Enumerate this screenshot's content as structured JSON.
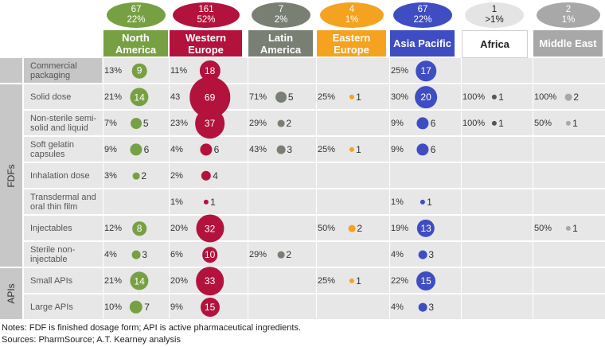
{
  "chart_data": {
    "type": "bubble-table",
    "columns": [
      {
        "name": "North America",
        "total": "67",
        "share": "22%",
        "color": "#77a043",
        "oval": "#77a043"
      },
      {
        "name": "Western Europe",
        "total": "161",
        "share": "52%",
        "color": "#b3123d",
        "oval": "#b3123d"
      },
      {
        "name": "Latin America",
        "total": "7",
        "share": "2%",
        "color": "#7a7f74",
        "oval": "#7a7f74"
      },
      {
        "name": "Eastern Europe",
        "total": "4",
        "share": "1%",
        "color": "#f4a21f",
        "oval": "#f4a21f"
      },
      {
        "name": "Asia Pacific",
        "total": "67",
        "share": "22%",
        "color": "#3f4dc2",
        "oval": "#3f4dc2"
      },
      {
        "name": "Africa",
        "total": "1",
        "share": ">1%",
        "color": "#555555",
        "oval": "#e4e4e4"
      },
      {
        "name": "Middle East",
        "total": "2",
        "share": "1%",
        "color": "#a8a8a8",
        "oval": "#a8a8a8"
      }
    ],
    "groups": [
      {
        "label": "",
        "rows": [
          "Commercial packaging"
        ]
      },
      {
        "label": "FDFs",
        "rows": [
          "Solid dose",
          "Non-sterile semi-solid and liquid",
          "Soft gelatin capsules",
          "Inhalation dose",
          "Transdermal and oral thin film",
          "Injectables",
          "Sterile non-injectable"
        ]
      },
      {
        "label": "APIs",
        "rows": [
          "Small APIs",
          "Large APIs"
        ]
      }
    ],
    "rows": [
      {
        "category": "Commercial packaging",
        "cells": [
          {
            "pct": "13%",
            "value": 9
          },
          {
            "pct": "11%",
            "value": 18
          },
          null,
          null,
          {
            "pct": "25%",
            "value": 17
          },
          null,
          null
        ]
      },
      {
        "category": "Solid dose",
        "cells": [
          {
            "pct": "21%",
            "value": 14
          },
          {
            "pct": "43",
            "value": 69
          },
          {
            "pct": "71%",
            "value": 5
          },
          {
            "pct": "25%",
            "value": 1
          },
          {
            "pct": "30%",
            "value": 20
          },
          {
            "pct": "100%",
            "value": 1
          },
          {
            "pct": "100%",
            "value": 2
          }
        ]
      },
      {
        "category": "Non-sterile semi-solid and liquid",
        "cells": [
          {
            "pct": "7%",
            "value": 5
          },
          {
            "pct": "23%",
            "value": 37
          },
          {
            "pct": "29%",
            "value": 2
          },
          null,
          {
            "pct": "9%",
            "value": 6
          },
          {
            "pct": "100%",
            "value": 1
          },
          {
            "pct": "50%",
            "value": 1
          }
        ]
      },
      {
        "category": "Soft gelatin capsules",
        "cells": [
          {
            "pct": "9%",
            "value": 6
          },
          {
            "pct": "4%",
            "value": 6
          },
          {
            "pct": "43%",
            "value": 3
          },
          {
            "pct": "25%",
            "value": 1
          },
          {
            "pct": "9%",
            "value": 6
          },
          null,
          null
        ]
      },
      {
        "category": "Inhalation dose",
        "cells": [
          {
            "pct": "3%",
            "value": 2
          },
          {
            "pct": "2%",
            "value": 4
          },
          null,
          null,
          null,
          null,
          null
        ]
      },
      {
        "category": "Transdermal and oral thin film",
        "cells": [
          null,
          {
            "pct": "1%",
            "value": 1
          },
          null,
          null,
          {
            "pct": "1%",
            "value": 1
          },
          null,
          null
        ]
      },
      {
        "category": "Injectables",
        "cells": [
          {
            "pct": "12%",
            "value": 8
          },
          {
            "pct": "20%",
            "value": 32
          },
          null,
          {
            "pct": "50%",
            "value": 2
          },
          {
            "pct": "19%",
            "value": 13
          },
          null,
          {
            "pct": "50%",
            "value": 1
          }
        ]
      },
      {
        "category": "Sterile non-injectable",
        "cells": [
          {
            "pct": "4%",
            "value": 3
          },
          {
            "pct": "6%",
            "value": 10
          },
          {
            "pct": "29%",
            "value": 2
          },
          null,
          {
            "pct": "4%",
            "value": 3
          },
          null,
          null
        ]
      },
      {
        "category": "Small APIs",
        "cells": [
          {
            "pct": "21%",
            "value": 14
          },
          {
            "pct": "20%",
            "value": 33
          },
          null,
          {
            "pct": "25%",
            "value": 1
          },
          {
            "pct": "22%",
            "value": 15
          },
          null,
          null
        ]
      },
      {
        "category": "Large APIs",
        "cells": [
          {
            "pct": "10%",
            "value": 7
          },
          {
            "pct": "9%",
            "value": 15
          },
          null,
          null,
          {
            "pct": "4%",
            "value": 3
          },
          null,
          null
        ]
      }
    ]
  },
  "notes": {
    "line1": "Notes: FDF is finished dosage form; API is active pharmaceutical ingredients.",
    "line2": "Sources: PharmSource; A.T. Kearney analysis"
  }
}
